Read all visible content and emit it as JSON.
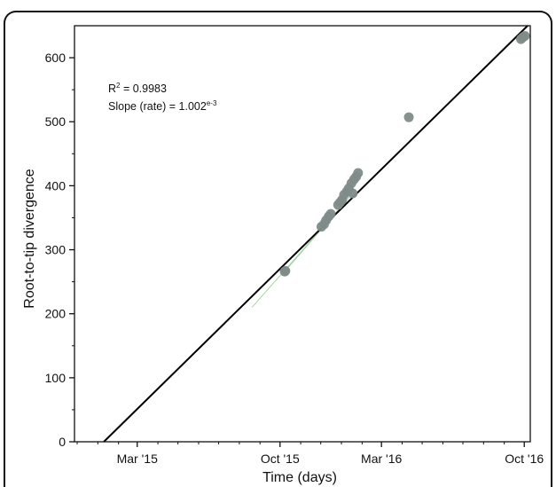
{
  "chart_data": {
    "type": "scatter",
    "title": "",
    "xlabel": "Time (days)",
    "ylabel": "Root-to-tip divergence",
    "x_ticks": [
      "Mar '15",
      "Oct '15",
      "Mar '16",
      "Oct '16"
    ],
    "x_tick_dates": [
      "2015-03-01",
      "2015-10-01",
      "2016-03-01",
      "2016-10-01"
    ],
    "y_ticks": [
      0,
      100,
      200,
      300,
      400,
      500,
      600
    ],
    "xlim": [
      "2014-11-27",
      "2016-10-10"
    ],
    "ylim": [
      0,
      650
    ],
    "grid": false,
    "annotations": {
      "r2_label": "R",
      "r2_sup": "2",
      "r2_value": " = 0.9983",
      "slope_label": "Slope (rate) = 1.002",
      "slope_sup": "e-3"
    },
    "fit_line": {
      "x": [
        "2015-01-10",
        "2016-10-06"
      ],
      "y": [
        0,
        650
      ]
    },
    "points": [
      {
        "x": "2015-10-08",
        "y": 266
      },
      {
        "x": "2015-10-09",
        "y": 267
      },
      {
        "x": "2015-12-02",
        "y": 336
      },
      {
        "x": "2015-12-06",
        "y": 340
      },
      {
        "x": "2015-12-09",
        "y": 346
      },
      {
        "x": "2015-12-13",
        "y": 352
      },
      {
        "x": "2015-12-16",
        "y": 356
      },
      {
        "x": "2015-12-27",
        "y": 370
      },
      {
        "x": "2015-12-30",
        "y": 374
      },
      {
        "x": "2016-01-02",
        "y": 378
      },
      {
        "x": "2016-01-05",
        "y": 386
      },
      {
        "x": "2016-01-09",
        "y": 391
      },
      {
        "x": "2016-01-12",
        "y": 396
      },
      {
        "x": "2016-01-16",
        "y": 404
      },
      {
        "x": "2016-01-18",
        "y": 388
      },
      {
        "x": "2016-01-20",
        "y": 410
      },
      {
        "x": "2016-01-23",
        "y": 414
      },
      {
        "x": "2016-01-26",
        "y": 420
      },
      {
        "x": "2016-04-11",
        "y": 507
      },
      {
        "x": "2016-09-26",
        "y": 629
      },
      {
        "x": "2016-09-29",
        "y": 632
      },
      {
        "x": "2016-10-02",
        "y": 634
      }
    ],
    "colors": {
      "points": "#7f8c8a",
      "fit": "#000000",
      "tree_edges": "#9ed39a",
      "axis": "#111111"
    }
  }
}
